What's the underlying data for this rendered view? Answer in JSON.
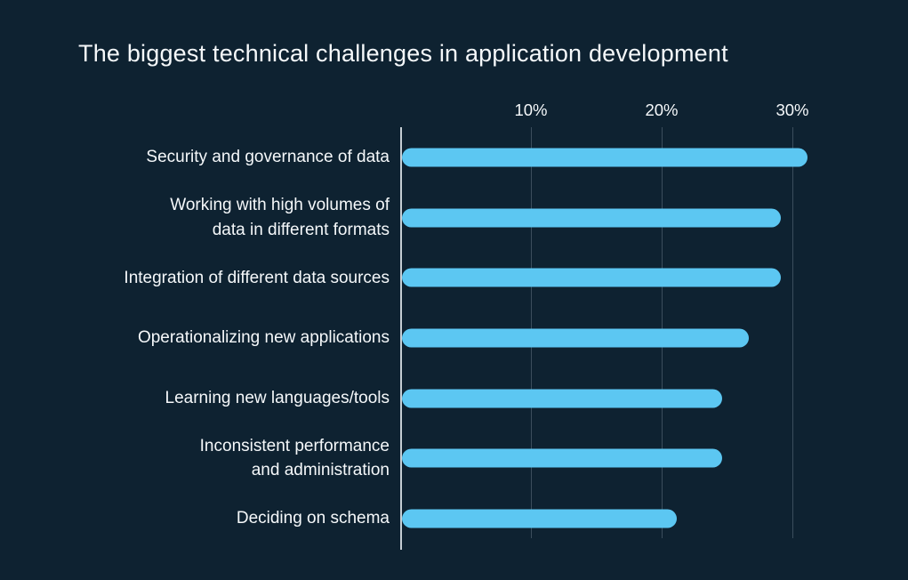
{
  "chart_data": {
    "type": "bar",
    "orientation": "horizontal",
    "title": "The biggest technical challenges in application development",
    "categories": [
      "Security and governance of data",
      "Working with high volumes of data in different formats",
      "Integration of different data sources",
      "Operationalizing new applications",
      "Learning new languages/tools",
      "Inconsistent performance and administration",
      "Deciding on schema"
    ],
    "category_lines": [
      [
        "Security and governance of data"
      ],
      [
        "Working with high volumes of",
        "data in different formats"
      ],
      [
        "Integration of different data sources"
      ],
      [
        "Operationalizing new applications"
      ],
      [
        "Learning new languages/tools"
      ],
      [
        "Inconsistent performance",
        "and administration"
      ],
      [
        "Deciding on schema"
      ]
    ],
    "values": [
      31,
      29,
      29,
      26.5,
      24.5,
      24.5,
      21
    ],
    "unit": "%",
    "xlim": [
      0,
      34
    ],
    "x_ticks": [
      {
        "value": 10,
        "label": "10%"
      },
      {
        "value": 20,
        "label": "20%"
      },
      {
        "value": 30,
        "label": "30%"
      }
    ],
    "grid": true,
    "legend": "none",
    "colors": {
      "background": "#0e2231",
      "bar": "#5cc7f2",
      "gridline": "#3b4d5c",
      "axis_line": "#c5cdd3",
      "text": "#f5f8fa"
    }
  }
}
